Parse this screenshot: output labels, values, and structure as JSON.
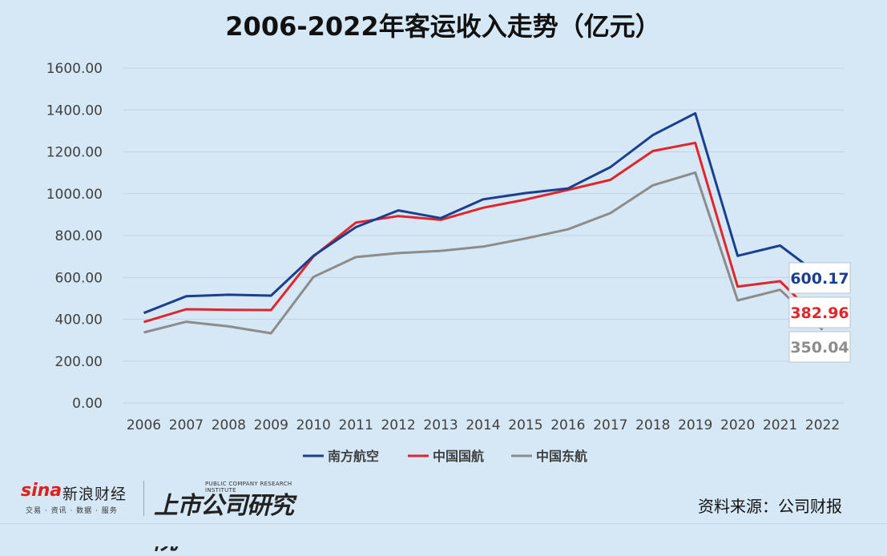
{
  "chart_data": {
    "type": "line",
    "title": "2006-2022年客运收入走势（亿元）",
    "categories": [
      "2006",
      "2007",
      "2008",
      "2009",
      "2010",
      "2011",
      "2012",
      "2013",
      "2014",
      "2015",
      "2016",
      "2017",
      "2018",
      "2019",
      "2020",
      "2021",
      "2022"
    ],
    "ylim": [
      0,
      1600
    ],
    "yticks": [
      0,
      200,
      400,
      600,
      800,
      1000,
      1200,
      1400,
      1600
    ],
    "grid": true,
    "legend": "bottom",
    "series": [
      {
        "name": "南方航空",
        "color": "#1a3f8f",
        "values": [
          430,
          510,
          517,
          513,
          703,
          840,
          920,
          883,
          973,
          1003,
          1025,
          1127,
          1280,
          1384,
          703,
          752,
          600.17
        ],
        "end_label": "600.17"
      },
      {
        "name": "中国国航",
        "color": "#e0262b",
        "values": [
          387,
          448,
          445,
          444,
          700,
          862,
          893,
          875,
          933,
          972,
          1018,
          1066,
          1204,
          1243,
          556,
          582,
          382.96
        ],
        "end_label": "382.96"
      },
      {
        "name": "中国东航",
        "color": "#8c8c8c",
        "values": [
          337,
          388,
          366,
          333,
          602,
          697,
          716,
          727,
          747,
          786,
          830,
          907,
          1040,
          1101,
          490,
          541,
          350.04
        ],
        "end_label": "350.04"
      }
    ]
  },
  "footer": {
    "sina_word": "sina",
    "sina_name": "新浪财经",
    "sina_sub": "交易 · 资讯 · 数据 · 服务",
    "inst_en": "PUBLIC COMPANY RESEARCH INSTITUTE",
    "inst_name": "上市公司研究院",
    "source": "资料来源：公司财报"
  }
}
